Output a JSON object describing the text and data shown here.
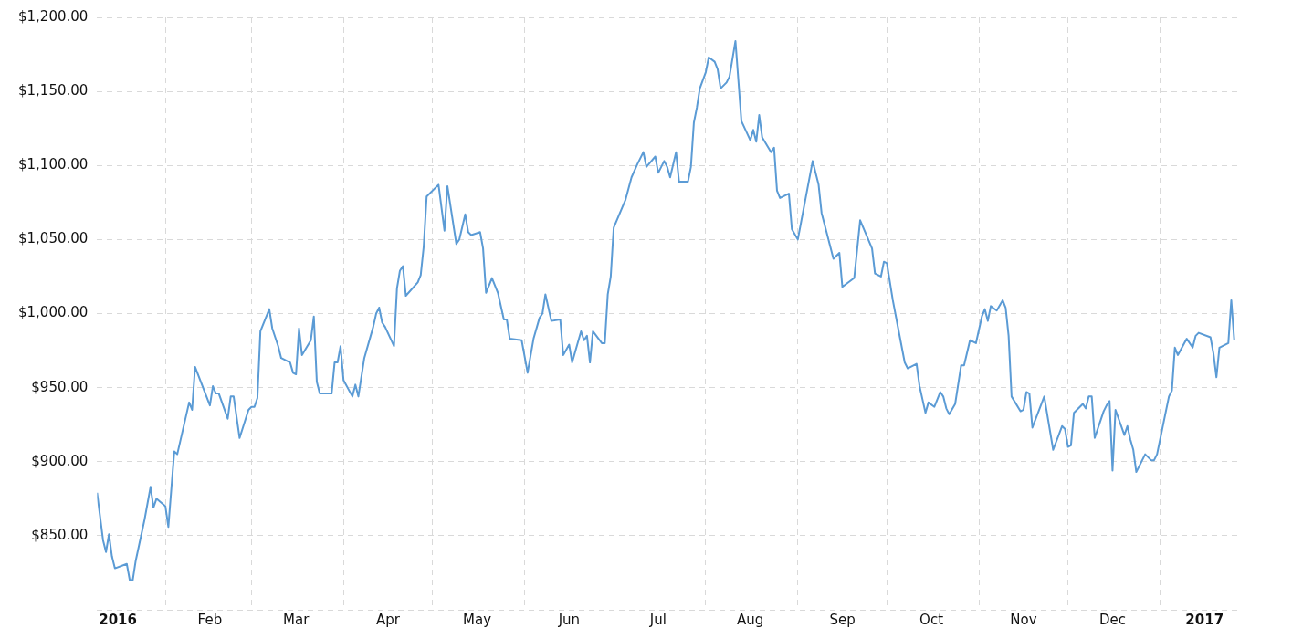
{
  "chart_data": {
    "type": "line",
    "x": [
      "2016-01-09",
      "2016-01-11",
      "2016-01-12",
      "2016-01-13",
      "2016-01-14",
      "2016-01-15",
      "2016-01-19",
      "2016-01-20",
      "2016-01-21",
      "2016-01-22",
      "2016-01-25",
      "2016-01-27",
      "2016-01-28",
      "2016-01-29",
      "2016-02-01",
      "2016-02-02",
      "2016-02-04",
      "2016-02-05",
      "2016-02-09",
      "2016-02-10",
      "2016-02-11",
      "2016-02-16",
      "2016-02-17",
      "2016-02-18",
      "2016-02-19",
      "2016-02-22",
      "2016-02-23",
      "2016-02-24",
      "2016-02-26",
      "2016-02-29",
      "2016-03-01",
      "2016-03-02",
      "2016-03-03",
      "2016-03-04",
      "2016-03-07",
      "2016-03-08",
      "2016-03-10",
      "2016-03-11",
      "2016-03-14",
      "2016-03-15",
      "2016-03-16",
      "2016-03-17",
      "2016-03-18",
      "2016-03-21",
      "2016-03-22",
      "2016-03-23",
      "2016-03-24",
      "2016-03-28",
      "2016-03-29",
      "2016-03-30",
      "2016-03-31",
      "2016-04-01",
      "2016-04-04",
      "2016-04-05",
      "2016-04-06",
      "2016-04-08",
      "2016-04-11",
      "2016-04-12",
      "2016-04-13",
      "2016-04-14",
      "2016-04-15",
      "2016-04-18",
      "2016-04-19",
      "2016-04-20",
      "2016-04-21",
      "2016-04-22",
      "2016-04-26",
      "2016-04-27",
      "2016-04-28",
      "2016-04-29",
      "2016-05-03",
      "2016-05-05",
      "2016-05-06",
      "2016-05-09",
      "2016-05-10",
      "2016-05-12",
      "2016-05-13",
      "2016-05-14",
      "2016-05-17",
      "2016-05-18",
      "2016-05-19",
      "2016-05-21",
      "2016-05-23",
      "2016-05-25",
      "2016-05-26",
      "2016-05-27",
      "2016-05-31",
      "2016-06-02",
      "2016-06-04",
      "2016-06-06",
      "2016-06-07",
      "2016-06-08",
      "2016-06-10",
      "2016-06-13",
      "2016-06-14",
      "2016-06-16",
      "2016-06-17",
      "2016-06-20",
      "2016-06-21",
      "2016-06-22",
      "2016-06-23",
      "2016-06-24",
      "2016-06-27",
      "2016-06-28",
      "2016-06-29",
      "2016-06-30",
      "2016-07-01",
      "2016-07-05",
      "2016-07-07",
      "2016-07-09",
      "2016-07-11",
      "2016-07-12",
      "2016-07-15",
      "2016-07-16",
      "2016-07-18",
      "2016-07-19",
      "2016-07-20",
      "2016-07-22",
      "2016-07-23",
      "2016-07-26",
      "2016-07-27",
      "2016-07-28",
      "2016-07-29",
      "2016-07-30",
      "2016-08-01",
      "2016-08-02",
      "2016-08-04",
      "2016-08-05",
      "2016-08-06",
      "2016-08-08",
      "2016-08-09",
      "2016-08-11",
      "2016-08-13",
      "2016-08-16",
      "2016-08-17",
      "2016-08-18",
      "2016-08-19",
      "2016-08-20",
      "2016-08-23",
      "2016-08-24",
      "2016-08-25",
      "2016-08-26",
      "2016-08-29",
      "2016-08-30",
      "2016-09-01",
      "2016-09-06",
      "2016-09-08",
      "2016-09-09",
      "2016-09-13",
      "2016-09-15",
      "2016-09-16",
      "2016-09-20",
      "2016-09-22",
      "2016-09-26",
      "2016-09-27",
      "2016-09-29",
      "2016-09-30",
      "2016-10-01",
      "2016-10-03",
      "2016-10-05",
      "2016-10-07",
      "2016-10-08",
      "2016-10-11",
      "2016-10-12",
      "2016-10-13",
      "2016-10-14",
      "2016-10-15",
      "2016-10-17",
      "2016-10-19",
      "2016-10-20",
      "2016-10-21",
      "2016-10-22",
      "2016-10-24",
      "2016-10-26",
      "2016-10-27",
      "2016-10-29",
      "2016-10-31",
      "2016-11-02",
      "2016-11-03",
      "2016-11-04",
      "2016-11-05",
      "2016-11-07",
      "2016-11-09",
      "2016-11-10",
      "2016-11-11",
      "2016-11-12",
      "2016-11-15",
      "2016-11-16",
      "2016-11-17",
      "2016-11-18",
      "2016-11-19",
      "2016-11-23",
      "2016-11-24",
      "2016-11-26",
      "2016-11-29",
      "2016-11-30",
      "2016-12-01",
      "2016-12-02",
      "2016-12-03",
      "2016-12-06",
      "2016-12-07",
      "2016-12-08",
      "2016-12-09",
      "2016-12-10",
      "2016-12-13",
      "2016-12-14",
      "2016-12-15",
      "2016-12-16",
      "2016-12-17",
      "2016-12-20",
      "2016-12-21",
      "2016-12-22",
      "2016-12-23",
      "2016-12-24",
      "2016-12-27",
      "2016-12-29",
      "2016-12-30",
      "2016-12-31",
      "2017-01-04",
      "2017-01-05",
      "2017-01-06",
      "2017-01-07",
      "2017-01-10",
      "2017-01-12",
      "2017-01-13",
      "2017-01-14",
      "2017-01-18",
      "2017-01-19",
      "2017-01-20",
      "2017-01-21",
      "2017-01-24",
      "2017-01-25",
      "2017-01-26"
    ],
    "series": [
      {
        "color": "#5b9bd5",
        "values": [
          879,
          847,
          839,
          851,
          836,
          828,
          831,
          820,
          820,
          833,
          861,
          883,
          869,
          875,
          870,
          856,
          907,
          905,
          940,
          935,
          964,
          938,
          951,
          946,
          946,
          929,
          944,
          944,
          916,
          935,
          937,
          937,
          943,
          988,
          1003,
          990,
          978,
          970,
          967,
          960,
          959,
          990,
          972,
          982,
          998,
          954,
          946,
          946,
          967,
          967,
          978,
          955,
          944,
          952,
          944,
          970,
          991,
          1000,
          1004,
          994,
          991,
          978,
          1017,
          1029,
          1032,
          1012,
          1021,
          1026,
          1045,
          1079,
          1087,
          1056,
          1086,
          1047,
          1050,
          1067,
          1055,
          1053,
          1055,
          1044,
          1014,
          1024,
          1014,
          996,
          996,
          983,
          982,
          960,
          983,
          997,
          1000,
          1013,
          995,
          996,
          972,
          979,
          967,
          988,
          982,
          985,
          967,
          988,
          980,
          980,
          1013,
          1025,
          1058,
          1077,
          1092,
          1101,
          1109,
          1099,
          1106,
          1095,
          1103,
          1099,
          1092,
          1109,
          1089,
          1089,
          1099,
          1129,
          1139,
          1152,
          1163,
          1173,
          1170,
          1165,
          1152,
          1156,
          1160,
          1184,
          1130,
          1117,
          1124,
          1116,
          1134,
          1119,
          1109,
          1112,
          1083,
          1078,
          1081,
          1057,
          1050,
          1103,
          1087,
          1068,
          1037,
          1041,
          1018,
          1024,
          1063,
          1044,
          1027,
          1025,
          1035,
          1034,
          1009,
          988,
          967,
          963,
          966,
          951,
          942,
          933,
          940,
          937,
          947,
          944,
          936,
          932,
          939,
          965,
          965,
          982,
          980,
          998,
          1003,
          995,
          1005,
          1002,
          1009,
          1004,
          985,
          944,
          934,
          935,
          947,
          946,
          923,
          944,
          932,
          908,
          924,
          922,
          910,
          911,
          933,
          939,
          936,
          944,
          944,
          916,
          934,
          938,
          941,
          894,
          935,
          918,
          924,
          915,
          908,
          893,
          905,
          901,
          901,
          905,
          944,
          948,
          977,
          972,
          983,
          977,
          985,
          987,
          984,
          973,
          957,
          977,
          980,
          1009,
          982
        ]
      }
    ],
    "xlim": [
      "2016-01-09",
      "2017-01-27"
    ],
    "xticks": [
      {
        "value": "2016-01-16",
        "label": "2016"
      },
      {
        "value": "2016-02-01",
        "label": null
      },
      {
        "value": "2016-02-16",
        "label": "Feb"
      },
      {
        "value": "2016-03-01",
        "label": null
      },
      {
        "value": "2016-03-16",
        "label": "Mar"
      },
      {
        "value": "2016-04-01",
        "label": null
      },
      {
        "value": "2016-04-16",
        "label": "Apr"
      },
      {
        "value": "2016-05-01",
        "label": null
      },
      {
        "value": "2016-05-16",
        "label": "May"
      },
      {
        "value": "2016-06-01",
        "label": null
      },
      {
        "value": "2016-06-16",
        "label": "Jun"
      },
      {
        "value": "2016-07-01",
        "label": null
      },
      {
        "value": "2016-07-16",
        "label": "Jul"
      },
      {
        "value": "2016-08-01",
        "label": null
      },
      {
        "value": "2016-08-16",
        "label": "Aug"
      },
      {
        "value": "2016-09-01",
        "label": null
      },
      {
        "value": "2016-09-16",
        "label": "Sep"
      },
      {
        "value": "2016-10-01",
        "label": null
      },
      {
        "value": "2016-10-16",
        "label": "Oct"
      },
      {
        "value": "2016-11-01",
        "label": null
      },
      {
        "value": "2016-11-16",
        "label": "Nov"
      },
      {
        "value": "2016-12-01",
        "label": null
      },
      {
        "value": "2016-12-16",
        "label": "Dec"
      },
      {
        "value": "2017-01-01",
        "label": null
      },
      {
        "value": "2017-01-16",
        "label": "2017"
      }
    ],
    "ylim": [
      800,
      1200
    ],
    "yticks": [
      {
        "value": 800,
        "label": null
      },
      {
        "value": 850,
        "label": "$850.00"
      },
      {
        "value": 900,
        "label": "$900.00"
      },
      {
        "value": 950,
        "label": "$950.00"
      },
      {
        "value": 1000,
        "label": "$1,000.00"
      },
      {
        "value": 1050,
        "label": "$1,050.00"
      },
      {
        "value": 1100,
        "label": "$1,100.00"
      },
      {
        "value": 1150,
        "label": "$1,150.00"
      },
      {
        "value": 1200,
        "label": "$1,200.00"
      }
    ],
    "grid": true,
    "marker": "none",
    "line_style": "solid",
    "legend": false
  }
}
